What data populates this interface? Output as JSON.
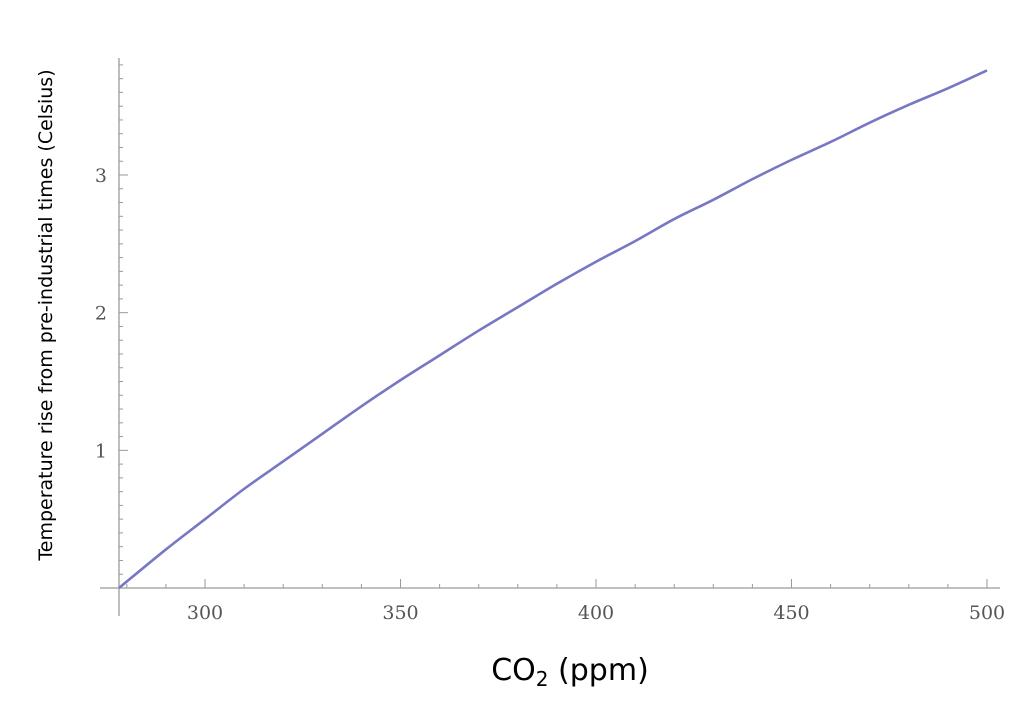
{
  "chart_data": {
    "type": "line",
    "title": "",
    "xlabel_main": "CO",
    "xlabel_sub": "2",
    "xlabel_tail": " (ppm)",
    "ylabel": "Temperature rise from pre-industrial times (Celsius)",
    "xlim": [
      278,
      500
    ],
    "ylim": [
      0,
      3.85
    ],
    "x_ticks": [
      300,
      350,
      400,
      450,
      500
    ],
    "y_ticks": [
      1,
      2,
      3
    ],
    "grid": false,
    "legend": "none",
    "series": [
      {
        "color": "#7777c4",
        "x": [
          278,
          290,
          300,
          310,
          320,
          330,
          340,
          350,
          360,
          370,
          380,
          390,
          400,
          410,
          420,
          430,
          440,
          450,
          460,
          470,
          480,
          490,
          500
        ],
        "y": [
          0.0,
          0.28,
          0.5,
          0.72,
          0.92,
          1.12,
          1.32,
          1.51,
          1.69,
          1.87,
          2.04,
          2.21,
          2.37,
          2.52,
          2.68,
          2.82,
          2.97,
          3.11,
          3.24,
          3.38,
          3.51,
          3.63,
          3.76
        ]
      }
    ]
  }
}
